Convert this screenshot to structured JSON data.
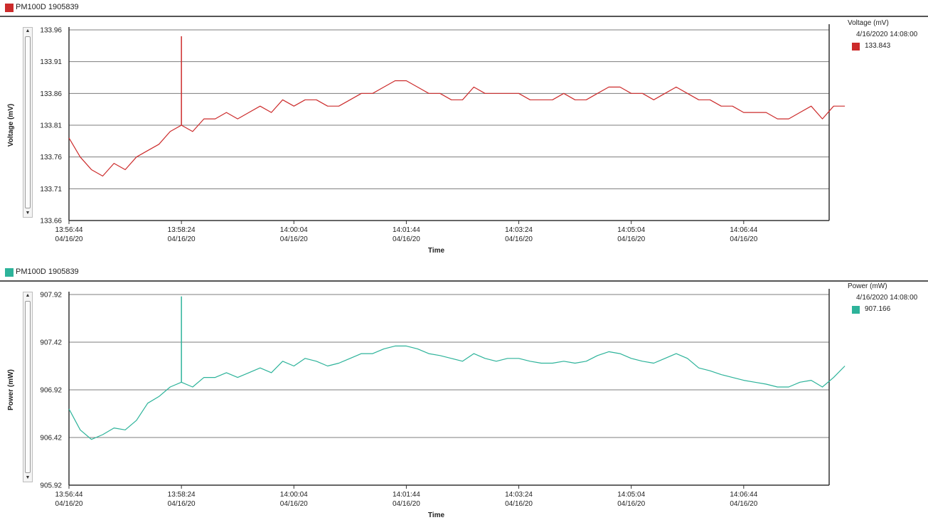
{
  "chart_data": [
    {
      "type": "line",
      "header_title": "PM100D 1905839",
      "color": "#cc2b2b",
      "ylabel": "Voltage (mV)",
      "xlabel": "Time",
      "ylim": [
        133.66,
        133.96
      ],
      "yticks": [
        "133.96",
        "133.91",
        "133.86",
        "133.81",
        "133.76",
        "133.71",
        "133.66"
      ],
      "xticks": [
        {
          "time": "13:56:44",
          "date": "04/16/20"
        },
        {
          "time": "13:58:24",
          "date": "04/16/20"
        },
        {
          "time": "14:00:04",
          "date": "04/16/20"
        },
        {
          "time": "14:01:44",
          "date": "04/16/20"
        },
        {
          "time": "14:03:24",
          "date": "04/16/20"
        },
        {
          "time": "14:05:04",
          "date": "04/16/20"
        },
        {
          "time": "14:06:44",
          "date": "04/16/20"
        }
      ],
      "xrange": [
        "13:56:44",
        "14:08:00"
      ],
      "grid": true,
      "legend": {
        "title": "Voltage (mV)",
        "date": "4/16/2020 14:08:00",
        "value": "133.843"
      },
      "series": [
        {
          "x_start": "13:56:44",
          "x_step_seconds": 10,
          "values": [
            133.79,
            133.76,
            133.74,
            133.73,
            133.75,
            133.74,
            133.76,
            133.77,
            133.78,
            133.8,
            133.81,
            133.8,
            133.82,
            133.82,
            133.83,
            133.82,
            133.83,
            133.84,
            133.83,
            133.85,
            133.84,
            133.85,
            133.85,
            133.84,
            133.84,
            133.85,
            133.86,
            133.86,
            133.87,
            133.88,
            133.88,
            133.87,
            133.86,
            133.86,
            133.85,
            133.85,
            133.87,
            133.86,
            133.86,
            133.86,
            133.86,
            133.85,
            133.85,
            133.85,
            133.86,
            133.85,
            133.85,
            133.86,
            133.87,
            133.87,
            133.86,
            133.86,
            133.85,
            133.86,
            133.87,
            133.86,
            133.85,
            133.85,
            133.84,
            133.84,
            133.83,
            133.83,
            133.83,
            133.82,
            133.82,
            133.83,
            133.84,
            133.82,
            133.84,
            133.84
          ],
          "spikes": [
            {
              "time": "13:58:24",
              "value": 133.95
            }
          ]
        }
      ]
    },
    {
      "type": "line",
      "header_title": "PM100D 1905839",
      "color": "#2db39a",
      "ylabel": "Power (mW)",
      "xlabel": "Time",
      "ylim": [
        905.92,
        907.92
      ],
      "yticks": [
        "907.92",
        "907.42",
        "906.92",
        "906.42",
        "905.92"
      ],
      "xticks": [
        {
          "time": "13:56:44",
          "date": "04/16/20"
        },
        {
          "time": "13:58:24",
          "date": "04/16/20"
        },
        {
          "time": "14:00:04",
          "date": "04/16/20"
        },
        {
          "time": "14:01:44",
          "date": "04/16/20"
        },
        {
          "time": "14:03:24",
          "date": "04/16/20"
        },
        {
          "time": "14:05:04",
          "date": "04/16/20"
        },
        {
          "time": "14:06:44",
          "date": "04/16/20"
        }
      ],
      "xrange": [
        "13:56:44",
        "14:08:00"
      ],
      "grid": true,
      "legend": {
        "title": "Power (mW)",
        "date": "4/16/2020 14:08:00",
        "value": "907.166"
      },
      "series": [
        {
          "x_start": "13:56:44",
          "x_step_seconds": 10,
          "values": [
            906.72,
            906.5,
            906.4,
            906.45,
            906.52,
            906.5,
            906.6,
            906.78,
            906.85,
            906.95,
            907.0,
            906.95,
            907.05,
            907.05,
            907.1,
            907.05,
            907.1,
            907.15,
            907.1,
            907.22,
            907.17,
            907.25,
            907.22,
            907.17,
            907.2,
            907.25,
            907.3,
            907.3,
            907.35,
            907.38,
            907.38,
            907.35,
            907.3,
            907.28,
            907.25,
            907.22,
            907.3,
            907.25,
            907.22,
            907.25,
            907.25,
            907.22,
            907.2,
            907.2,
            907.22,
            907.2,
            907.22,
            907.28,
            907.32,
            907.3,
            907.25,
            907.22,
            907.2,
            907.25,
            907.3,
            907.25,
            907.15,
            907.12,
            907.08,
            907.05,
            907.02,
            907.0,
            906.98,
            906.95,
            906.95,
            907.0,
            907.02,
            906.95,
            907.05,
            907.17
          ],
          "spikes": [
            {
              "time": "13:58:24",
              "value": 907.9
            }
          ]
        }
      ]
    }
  ]
}
